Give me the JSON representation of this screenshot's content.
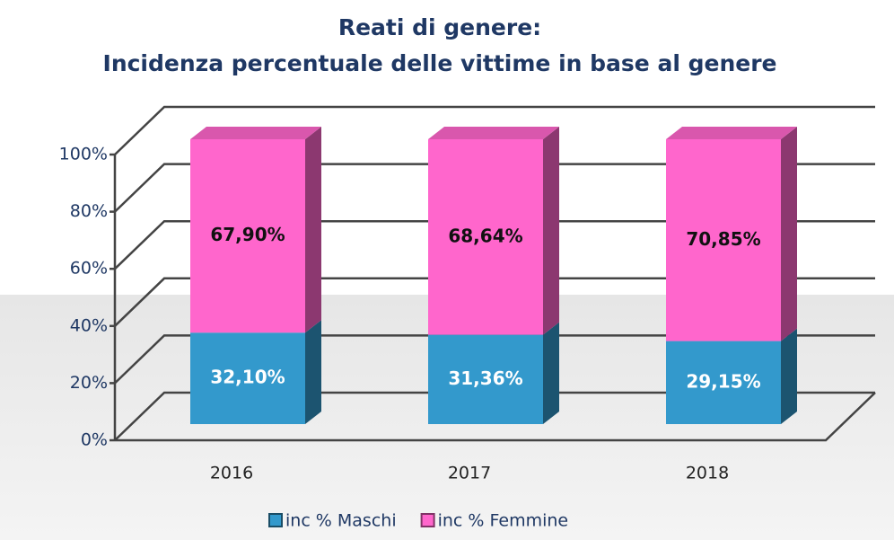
{
  "chart_data": {
    "type": "bar3d-stacked",
    "title": "Reati di genere:",
    "subtitle": "Incidenza percentuale delle vittime in base al genere",
    "categories": [
      "2016",
      "2017",
      "2018"
    ],
    "series": [
      {
        "name": "inc % Maschi",
        "color": "#3399cc",
        "values": [
          32.1,
          31.36,
          29.15
        ],
        "value_labels": [
          "32,10%",
          "31,36%",
          "29,15%"
        ]
      },
      {
        "name": "inc % Femmine",
        "color": "#ff66cc",
        "values": [
          67.9,
          68.64,
          70.85
        ],
        "value_labels": [
          "67,90%",
          "68,64%",
          "70,85%"
        ]
      }
    ],
    "ylim": [
      0,
      100
    ],
    "yticks": [
      {
        "value": 0,
        "label": "0%"
      },
      {
        "value": 20,
        "label": "20%"
      },
      {
        "value": 40,
        "label": "40%"
      },
      {
        "value": 60,
        "label": "60%"
      },
      {
        "value": 80,
        "label": "80%"
      },
      {
        "value": 100,
        "label": "100%"
      }
    ],
    "grid": true,
    "legend": "bottom"
  }
}
